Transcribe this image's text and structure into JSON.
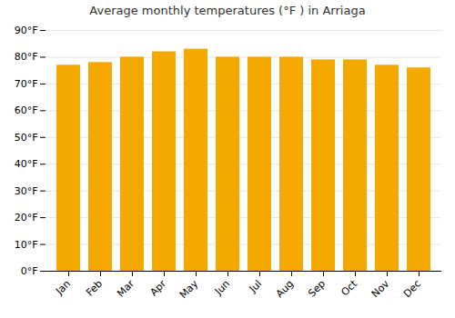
{
  "chart_data": {
    "type": "bar",
    "title": "Average monthly temperatures (°F ) in Arriaga",
    "categories": [
      "Jan",
      "Feb",
      "Mar",
      "Apr",
      "May",
      "Jun",
      "Jul",
      "Aug",
      "Sep",
      "Oct",
      "Nov",
      "Dec"
    ],
    "values": [
      77,
      78,
      80,
      82,
      83,
      80,
      80,
      80,
      79,
      79,
      77,
      76
    ],
    "color": "#F5A800",
    "ylim": [
      0,
      90
    ],
    "yticks": [
      {
        "value": 0,
        "label": "0°F"
      },
      {
        "value": 10,
        "label": "10°F"
      },
      {
        "value": 20,
        "label": "20°F"
      },
      {
        "value": 30,
        "label": "30°F"
      },
      {
        "value": 40,
        "label": "40°F"
      },
      {
        "value": 50,
        "label": "50°F"
      },
      {
        "value": 60,
        "label": "60°F"
      },
      {
        "value": 70,
        "label": "70°F"
      },
      {
        "value": 80,
        "label": "80°F"
      },
      {
        "value": 90,
        "label": "90°F"
      }
    ],
    "grid": true
  }
}
